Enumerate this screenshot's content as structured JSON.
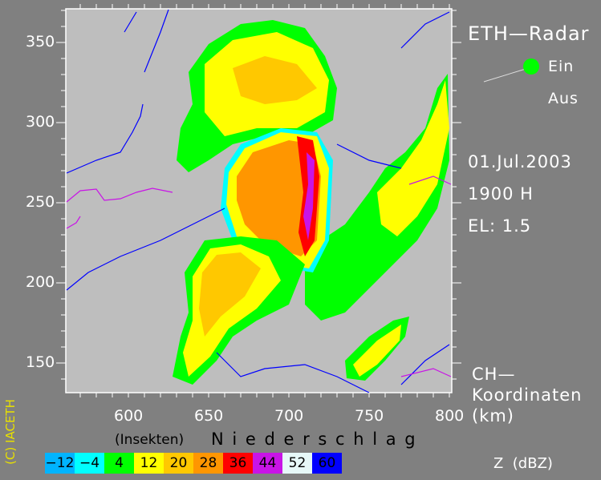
{
  "title": "ETH—Radar",
  "toggle": {
    "on_label": "Ein",
    "off_label": "Aus",
    "state": "Ein",
    "indicator_color": "#00ff00"
  },
  "date": "01.Jul.2003",
  "time": "1900 H",
  "elevation": "EL: 1.5",
  "coord_label": {
    "line1": "CH—",
    "line2": "Koordinaten",
    "line3": "(km)"
  },
  "axes": {
    "x_ticks": [
      "600",
      "650",
      "700",
      "750",
      "800"
    ],
    "y_ticks": [
      "150",
      "200",
      "250",
      "300",
      "350"
    ]
  },
  "legend": {
    "insects_label": "(Insekten)",
    "precip_label": "N i e d e r s c h l a g",
    "unit_label": "Z  (dBZ)",
    "classes": [
      {
        "value": "−12",
        "color": "#00b4ff"
      },
      {
        "value": "−4",
        "color": "#00ffff"
      },
      {
        "value": "4",
        "color": "#00ff00"
      },
      {
        "value": "12",
        "color": "#ffff00"
      },
      {
        "value": "20",
        "color": "#ffc800"
      },
      {
        "value": "28",
        "color": "#ff9600"
      },
      {
        "value": "36",
        "color": "#ff0000"
      },
      {
        "value": "44",
        "color": "#c814e6"
      },
      {
        "value": "52",
        "color": "#e6f8f8"
      },
      {
        "value": "60",
        "color": "#0000ff"
      }
    ]
  },
  "copyright": "(C) IACETH"
}
